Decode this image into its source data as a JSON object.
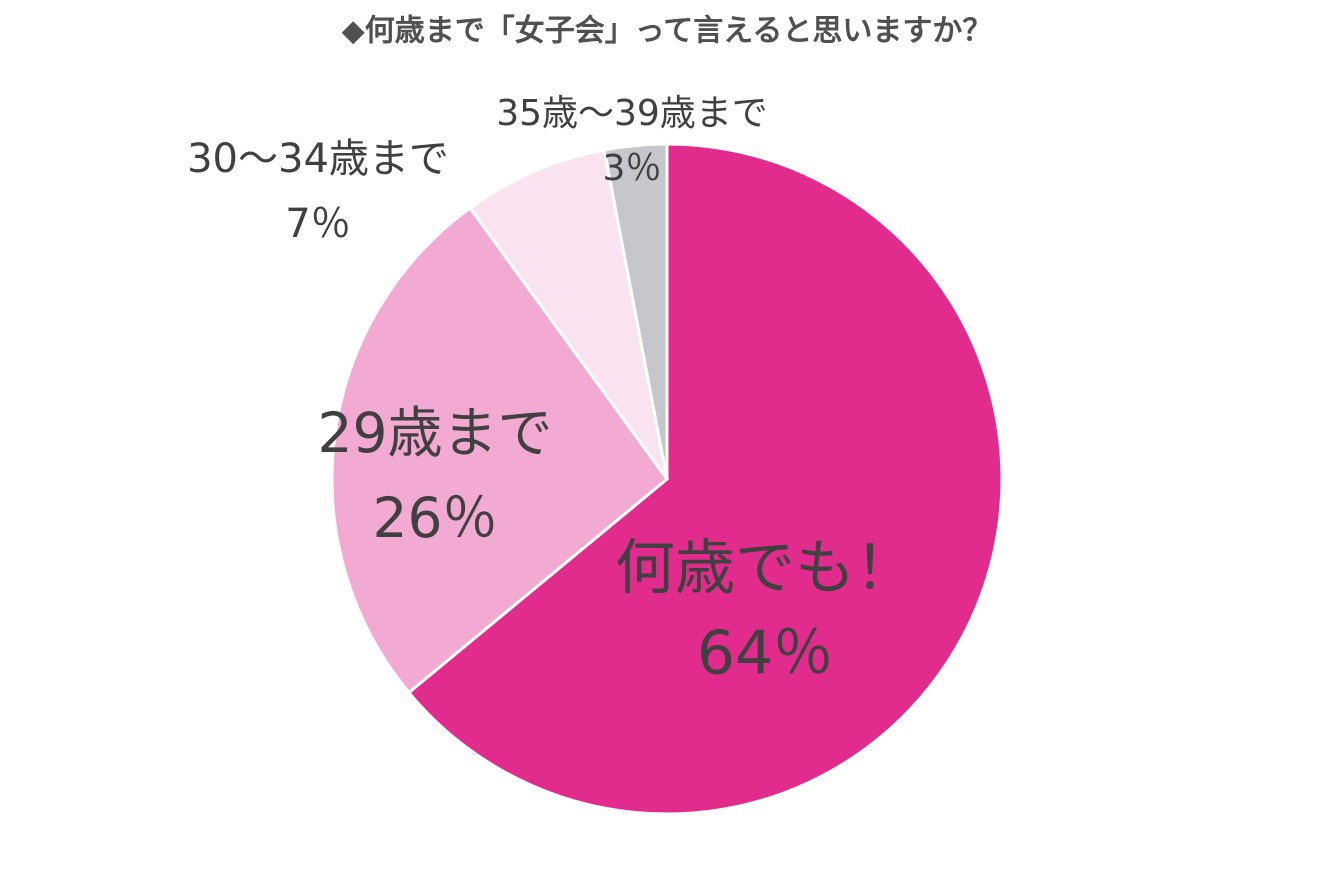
{
  "chart_data": {
    "type": "pie",
    "title": "◆何歳まで「女子会」って言えると思いますか？",
    "categories": [
      "何歳でも！",
      "29歳まで",
      "30～34歳まで",
      "35歳～39歳まで"
    ],
    "values": [
      64,
      26,
      7,
      3
    ],
    "value_labels": [
      "64％",
      "26％",
      "7％",
      "3％"
    ],
    "colors": [
      "#e12c8e",
      "#f2aad2",
      "#fae3f0",
      "#c6c7cc"
    ]
  }
}
